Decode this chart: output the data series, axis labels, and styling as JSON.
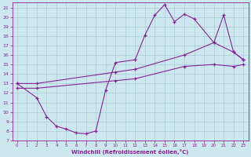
{
  "xlabel": "Windchill (Refroidissement éolien,°C)",
  "background_color": "#cce8ee",
  "grid_color": "#aaccd8",
  "line_color": "#882299",
  "xlim": [
    -0.5,
    23.5
  ],
  "ylim": [
    7,
    21.5
  ],
  "xticks": [
    0,
    1,
    2,
    3,
    4,
    5,
    6,
    7,
    8,
    9,
    10,
    11,
    12,
    13,
    14,
    15,
    16,
    17,
    18,
    19,
    20,
    21,
    22,
    23
  ],
  "yticks": [
    7,
    8,
    9,
    10,
    11,
    12,
    13,
    14,
    15,
    16,
    17,
    18,
    19,
    20,
    21
  ],
  "line1_x": [
    0,
    2,
    3,
    4,
    5,
    6,
    7,
    8,
    9,
    10,
    12,
    13,
    14,
    15,
    16,
    17,
    18,
    20,
    21,
    22,
    23
  ],
  "line1_y": [
    13,
    11.5,
    9.5,
    8.5,
    8.2,
    7.8,
    7.7,
    8.0,
    12.3,
    15.2,
    15.5,
    18.1,
    20.2,
    21.3,
    19.5,
    20.3,
    19.8,
    17.3,
    20.2,
    16.3,
    15.5
  ],
  "line2_x": [
    0,
    2,
    10,
    12,
    17,
    20,
    22,
    23
  ],
  "line2_y": [
    13.0,
    13.0,
    14.2,
    14.5,
    16.0,
    17.3,
    16.3,
    15.5
  ],
  "line3_x": [
    0,
    2,
    10,
    12,
    17,
    20,
    22,
    23
  ],
  "line3_y": [
    12.5,
    12.5,
    13.3,
    13.5,
    14.8,
    15.0,
    14.8,
    15.0
  ]
}
